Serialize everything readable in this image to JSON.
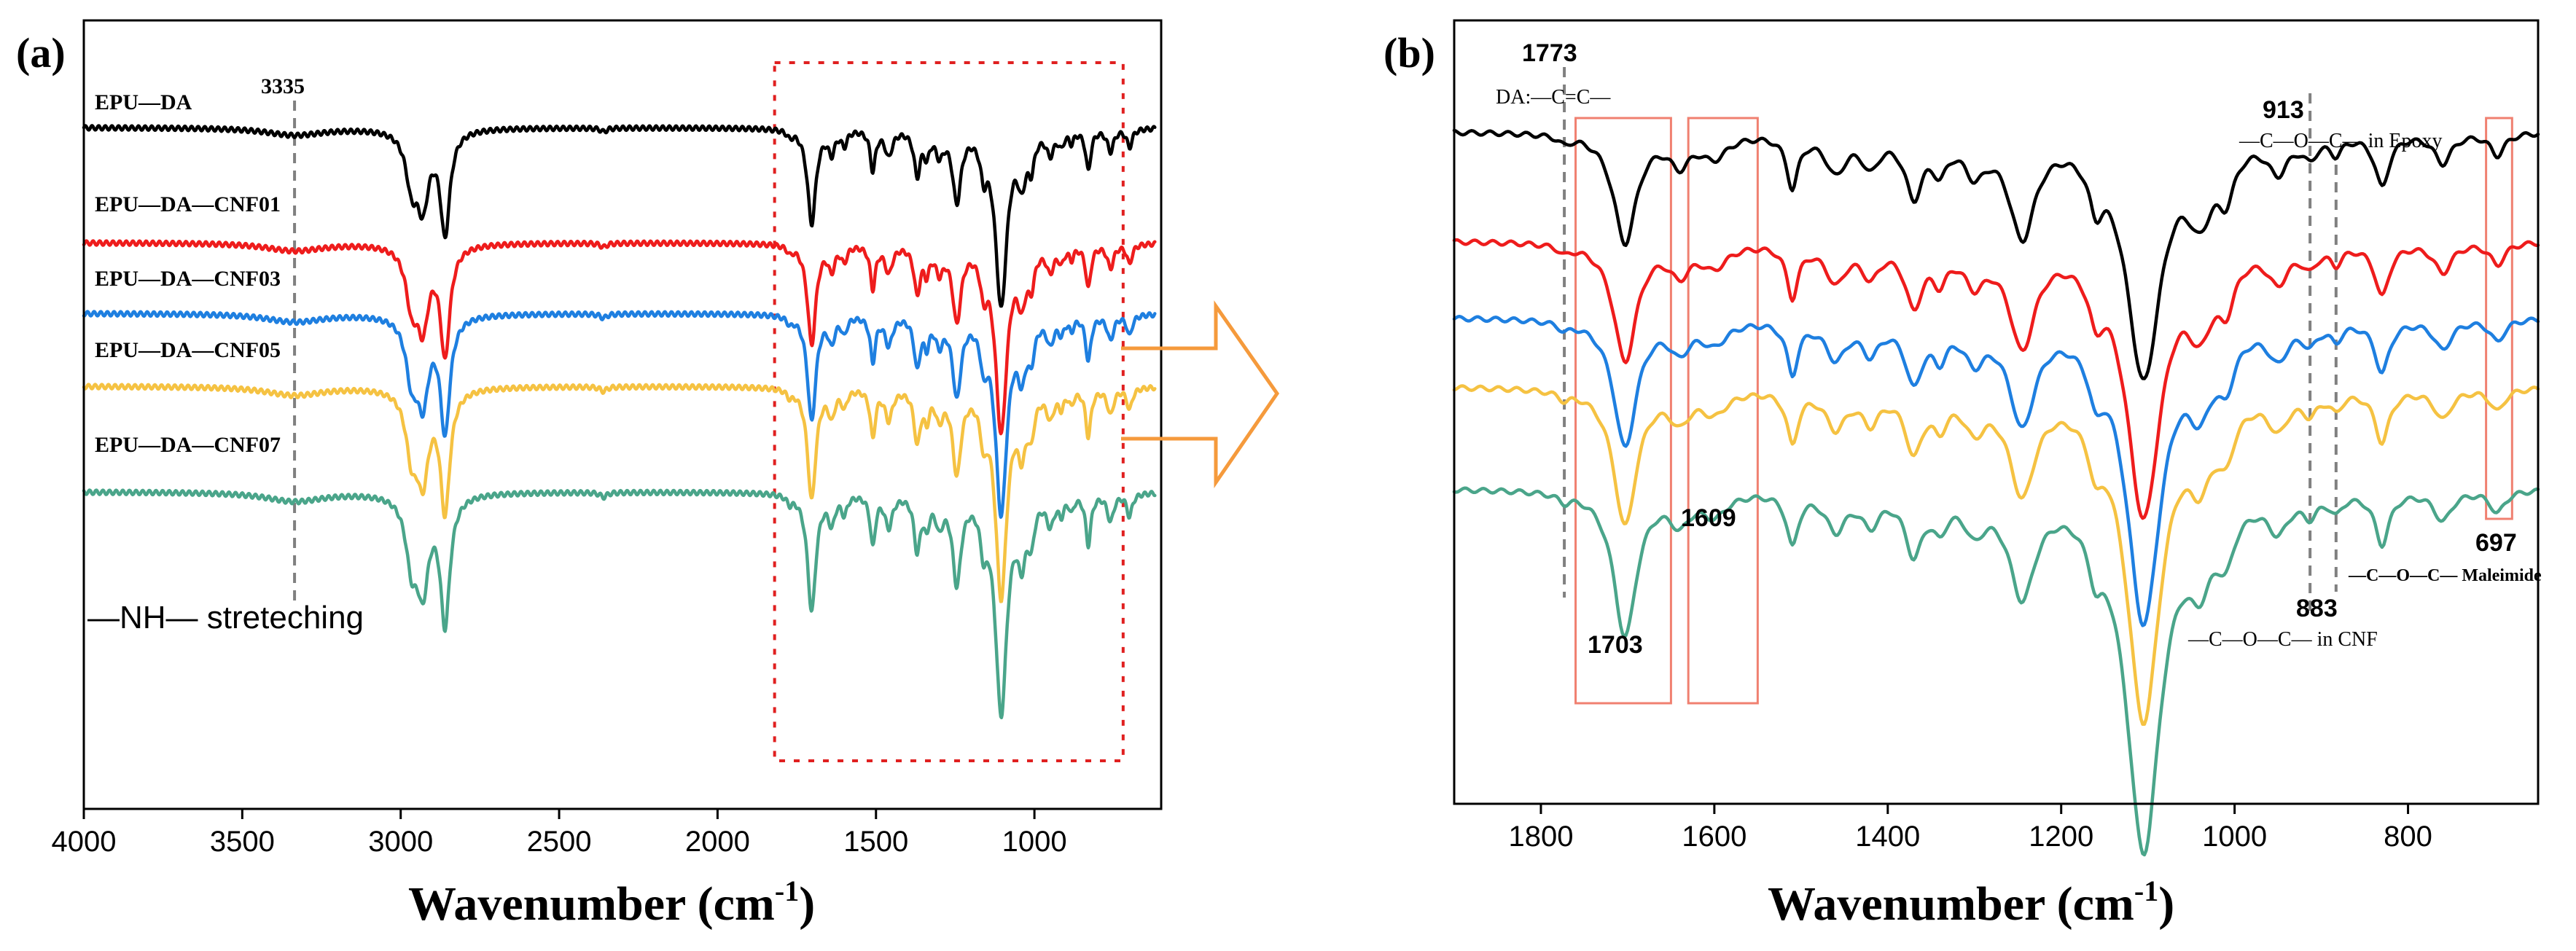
{
  "chart_data": [
    {
      "panel": "(a)",
      "type": "line",
      "xlabel": "Wavenumber (cm",
      "xlabel_sup": "-1",
      "xlabel_close": ")",
      "xlim": [
        4000,
        600
      ],
      "xticks": [
        4000,
        3500,
        3000,
        2500,
        2000,
        1500,
        1000
      ],
      "xtick_labels": [
        "4000",
        "3500",
        "3000",
        "2500",
        "2000",
        "1500",
        "1000"
      ],
      "series": [
        {
          "name": "EPU—DA",
          "color": "#000000",
          "offset": 0
        },
        {
          "name": "EPU—DA—CNF01",
          "color": "#ee1c1c",
          "offset": 1
        },
        {
          "name": "EPU—DA—CNF03",
          "color": "#1e7fe0",
          "offset": 2
        },
        {
          "name": "EPU—DA—CNF05",
          "color": "#f5c242",
          "offset": 3
        },
        {
          "name": "EPU—DA—CNF07",
          "color": "#4aa58a",
          "offset": 4
        }
      ],
      "annotations": [
        {
          "text": "3335",
          "x": 3335
        },
        {
          "text": "—NH—  streteching",
          "x": 3335
        }
      ],
      "zoom_region": [
        1820,
        720
      ]
    },
    {
      "panel": "(b)",
      "type": "line",
      "xlabel": "Wavenumber (cm",
      "xlabel_sup": "-1",
      "xlabel_close": ")",
      "xlim": [
        1900,
        650
      ],
      "xticks": [
        1800,
        1600,
        1400,
        1200,
        1000,
        800
      ],
      "xtick_labels": [
        "1800",
        "1600",
        "1400",
        "1200",
        "1000",
        "800"
      ],
      "series": [
        {
          "color": "#000000",
          "offset": 0
        },
        {
          "color": "#ee1c1c",
          "offset": 1
        },
        {
          "color": "#1e7fe0",
          "offset": 2
        },
        {
          "color": "#f5c242",
          "offset": 3
        },
        {
          "color": "#4aa58a",
          "offset": 4
        }
      ],
      "annotations": [
        {
          "text": "1773",
          "x": 1773
        },
        {
          "text": "DA:—C=C—",
          "x": 1773
        },
        {
          "text": "1703",
          "x": 1703
        },
        {
          "text": "1609",
          "x": 1609
        },
        {
          "text": "913",
          "x": 913
        },
        {
          "text": "—C—O—C— in Epoxy",
          "x": 913
        },
        {
          "text": "883",
          "x": 883
        },
        {
          "text": "—C—O—C— in CNF",
          "x": 883
        },
        {
          "text": "697",
          "x": 697
        },
        {
          "text": "—C—O—C— Maleimide",
          "x": 697
        }
      ],
      "highlight_ranges": [
        [
          1760,
          1650
        ],
        [
          1630,
          1550
        ],
        [
          710,
          680
        ]
      ]
    }
  ]
}
